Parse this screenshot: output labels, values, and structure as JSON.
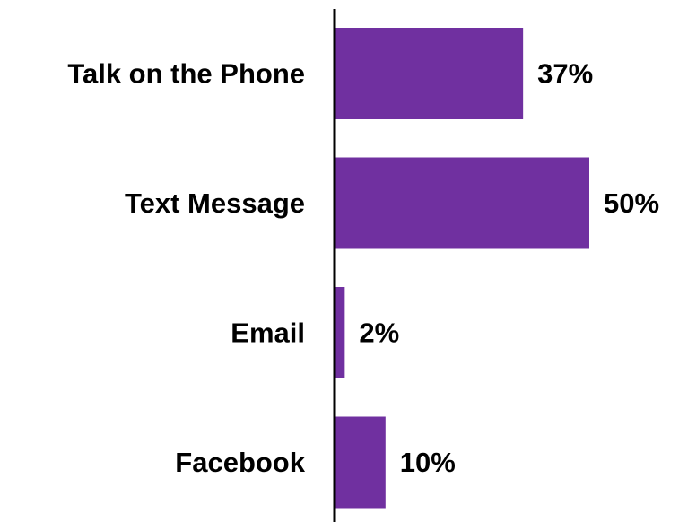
{
  "chart_data": {
    "type": "bar",
    "orientation": "horizontal",
    "categories": [
      "Talk on the Phone",
      "Text Message",
      "Email",
      "Facebook"
    ],
    "values": [
      37,
      50,
      2,
      10
    ],
    "value_labels": [
      "37%",
      "50%",
      "2%",
      "10%"
    ],
    "unit": "%",
    "xlim": [
      0,
      50
    ],
    "grid": false,
    "legend": "none",
    "colors": {
      "bar": "#7030a0",
      "axis": "#000000",
      "text": "#000000"
    }
  }
}
